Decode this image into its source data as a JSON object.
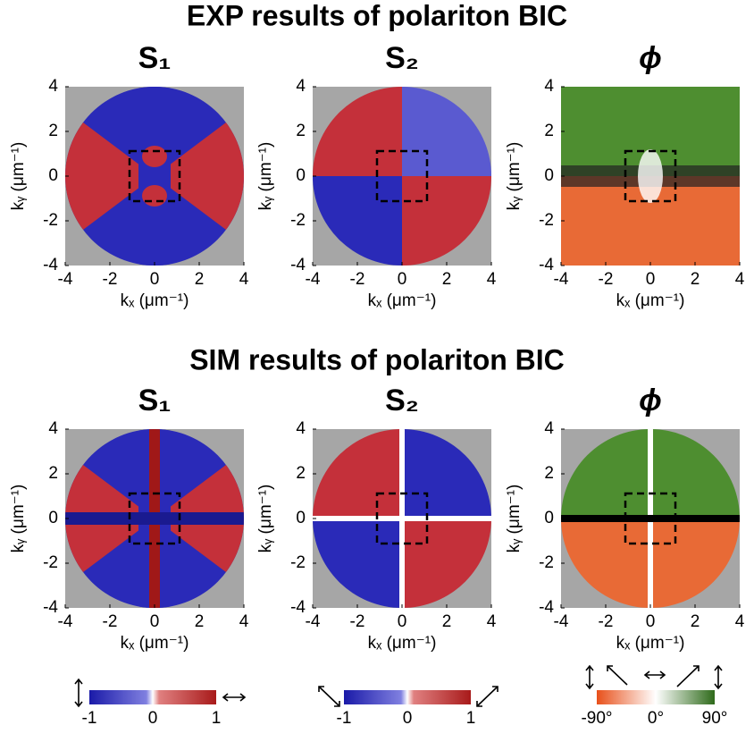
{
  "sections": [
    {
      "title": "EXP results of polariton BIC",
      "panels": [
        {
          "title": "S₁"
        },
        {
          "title": "S₂"
        },
        {
          "title": "ϕ"
        }
      ]
    },
    {
      "title": "SIM results of polariton BIC",
      "panels": [
        {
          "title": "S₁"
        },
        {
          "title": "S₂"
        },
        {
          "title": "ϕ"
        }
      ]
    }
  ],
  "axes": {
    "xticks": [
      -4,
      -2,
      0,
      2,
      4
    ],
    "yticks": [
      -4,
      -2,
      0,
      2,
      4
    ],
    "xlabel": "kₓ (μm⁻¹)",
    "ylabel": "kᵧ (μm⁻¹)"
  },
  "colorbars": [
    {
      "ticks": [
        "-1",
        "0",
        "1"
      ]
    },
    {
      "ticks": [
        "-1",
        "0",
        "1"
      ]
    },
    {
      "ticks": [
        "-90°",
        "0°",
        "90°"
      ]
    }
  ]
}
